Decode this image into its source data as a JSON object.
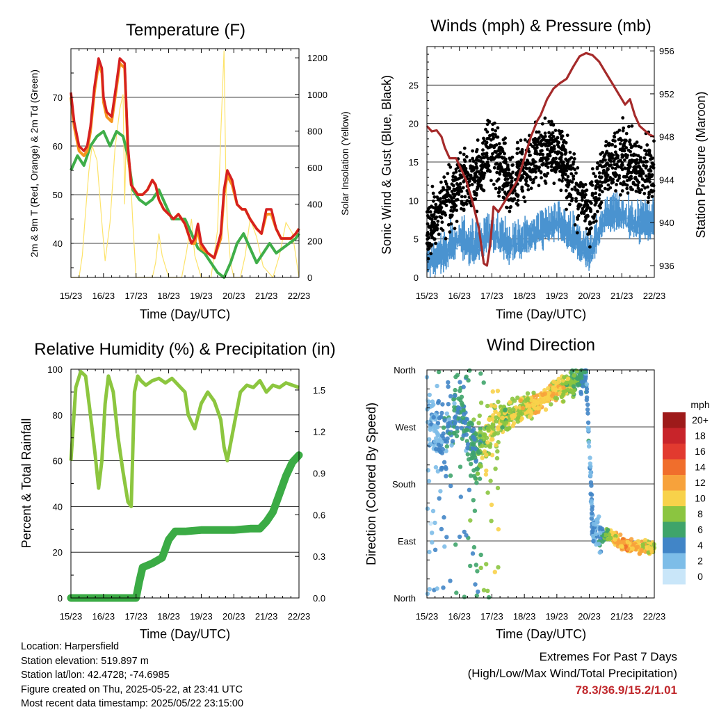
{
  "chart_data": [
    {
      "type": "line",
      "title": "Temperature (F)",
      "xlabel": "Time (Day/UTC)",
      "ylabel": "2m & 9m T (Red, Orange) & 2m Td (Green)",
      "y2label": "Solar Insolation (Yellow)",
      "x_ticks": [
        "15/23",
        "16/23",
        "17/23",
        "18/23",
        "19/23",
        "20/23",
        "21/23",
        "22/23"
      ],
      "ylim": [
        33,
        80
      ],
      "y_ticks": [
        40,
        50,
        60,
        70
      ],
      "y2lim": [
        0,
        1250
      ],
      "y2_ticks": [
        0,
        200,
        400,
        600,
        800,
        1000,
        1200
      ],
      "grid": true,
      "colors": {
        "t2m": "#d62020",
        "t9m": "#f7941d",
        "td": "#3fae49",
        "solar": "#fde36a"
      },
      "series": [
        {
          "name": "2m T",
          "x": [
            0,
            0.1,
            0.25,
            0.4,
            0.5,
            0.6,
            0.72,
            0.85,
            0.95,
            1.0,
            1.1,
            1.25,
            1.4,
            1.5,
            1.65,
            1.75,
            1.85,
            1.95,
            2.05,
            2.2,
            2.35,
            2.5,
            2.6,
            2.7,
            2.85,
            3.0,
            3.15,
            3.3,
            3.5,
            3.7,
            3.8,
            3.9,
            4.0,
            4.2,
            4.4,
            4.6,
            4.7,
            4.8,
            4.95,
            5.1,
            5.25,
            5.35,
            5.5,
            5.7,
            5.85,
            6.0,
            6.15,
            6.3,
            6.45,
            6.6,
            6.75,
            6.9,
            7.0
          ],
          "values": [
            71,
            65,
            60,
            59,
            60,
            64,
            72,
            78,
            76,
            70,
            67,
            66,
            73,
            78,
            77,
            60,
            52,
            51,
            50,
            50,
            51,
            53,
            52,
            49,
            47,
            46,
            45,
            46,
            44,
            40,
            41,
            44,
            40,
            38,
            37,
            42,
            51,
            55,
            53,
            48,
            47,
            47,
            45,
            43,
            42,
            47,
            47,
            43,
            41,
            41,
            41,
            42,
            43
          ]
        },
        {
          "name": "9m T",
          "x": [
            0,
            0.1,
            0.25,
            0.4,
            0.5,
            0.6,
            0.72,
            0.85,
            0.95,
            1.0,
            1.1,
            1.25,
            1.4,
            1.5,
            1.65,
            1.75,
            1.85,
            1.95,
            2.05,
            2.2,
            2.35,
            2.5,
            2.6,
            2.7,
            2.85,
            3.0,
            3.15,
            3.3,
            3.5,
            3.7,
            3.8,
            3.9,
            4.0,
            4.2,
            4.4,
            4.6,
            4.7,
            4.8,
            4.95,
            5.1,
            5.25,
            5.35,
            5.5,
            5.7,
            5.85,
            6.0,
            6.15,
            6.3,
            6.45,
            6.6,
            6.75,
            6.9,
            7.0
          ],
          "values": [
            70,
            64,
            59,
            58,
            59,
            63,
            71,
            77,
            75,
            69,
            66,
            65,
            72,
            77,
            76,
            59,
            52,
            51,
            50,
            50,
            51,
            53,
            52,
            49,
            47,
            46,
            45,
            46,
            44,
            40,
            40,
            43,
            39,
            38,
            37,
            41,
            50,
            54,
            52,
            48,
            47,
            47,
            45,
            43,
            42,
            46,
            46,
            43,
            41,
            41,
            41,
            42,
            43
          ]
        },
        {
          "name": "2m Td",
          "x": [
            0,
            0.2,
            0.4,
            0.6,
            0.8,
            1.0,
            1.2,
            1.4,
            1.6,
            1.75,
            1.9,
            2.1,
            2.3,
            2.5,
            2.7,
            2.9,
            3.1,
            3.3,
            3.5,
            3.7,
            3.9,
            4.1,
            4.3,
            4.5,
            4.7,
            4.9,
            5.1,
            5.3,
            5.5,
            5.7,
            5.9,
            6.1,
            6.3,
            6.5,
            6.7,
            6.9,
            7.0
          ],
          "values": [
            55,
            58,
            56,
            60,
            62,
            63,
            60,
            63,
            62,
            58,
            51,
            49,
            48,
            49,
            51,
            48,
            45,
            45,
            45,
            42,
            39,
            38,
            36,
            34,
            33,
            36,
            40,
            42,
            39,
            36,
            38,
            40,
            38,
            39,
            40,
            41,
            42
          ]
        },
        {
          "name": "Solar Insolation",
          "axis": "y2",
          "x": [
            0,
            0.25,
            0.35,
            0.45,
            0.55,
            0.65,
            0.8,
            0.95,
            1.05,
            1.2,
            1.35,
            1.5,
            1.6,
            1.65,
            1.7,
            1.8,
            1.9,
            2.0,
            2.5,
            2.6,
            2.7,
            2.8,
            3.0,
            3.4,
            3.55,
            3.7,
            3.8,
            4.0,
            4.3,
            4.5,
            4.6,
            4.7,
            4.75,
            4.8,
            4.9,
            5.0,
            5.2,
            5.35,
            5.5,
            5.7,
            5.9,
            6.2,
            6.4,
            6.6,
            6.8,
            7.0
          ],
          "values": [
            0,
            0,
            120,
            360,
            580,
            720,
            640,
            300,
            90,
            300,
            700,
            920,
            1000,
            400,
            820,
            660,
            300,
            0,
            0,
            80,
            240,
            120,
            0,
            0,
            140,
            320,
            120,
            0,
            0,
            260,
            780,
            1240,
            600,
            300,
            80,
            0,
            0,
            120,
            320,
            220,
            60,
            0,
            120,
            300,
            240,
            0
          ]
        }
      ]
    },
    {
      "type": "scatter",
      "title": "Winds (mph) & Pressure (mb)",
      "xlabel": "Time (Day/UTC)",
      "ylabel": "Sonic Wind & Gust (Blue, Black)",
      "y2label": "Station Pressure (Maroon)",
      "x_ticks": [
        "15/23",
        "16/23",
        "17/23",
        "18/23",
        "19/23",
        "20/23",
        "21/23",
        "22/23"
      ],
      "ylim": [
        0,
        30
      ],
      "y_ticks": [
        0,
        5,
        10,
        15,
        20,
        25
      ],
      "y2lim": [
        934.9,
        956.4
      ],
      "y2_ticks": [
        936,
        940,
        944,
        948,
        952,
        956
      ],
      "grid": true,
      "colors": {
        "wind": "#4a93d0",
        "gust": "#000000",
        "pressure": "#a52a2a"
      },
      "wind_profile": {
        "x": [
          0,
          0.5,
          1,
          1.5,
          2,
          2.5,
          3,
          3.5,
          4,
          4.5,
          5,
          5.5,
          6,
          6.5,
          7
        ],
        "wind": [
          3,
          4,
          6,
          5,
          7,
          5,
          6,
          7,
          8,
          6,
          4,
          9,
          9,
          8,
          8
        ],
        "gust": [
          6,
          9,
          12,
          13,
          17,
          12,
          14,
          16,
          17,
          12,
          8,
          15,
          16,
          14,
          14
        ]
      },
      "series": [
        {
          "name": "Station Pressure",
          "axis": "y2",
          "x": [
            0,
            0.15,
            0.3,
            0.45,
            0.55,
            0.7,
            0.9,
            1.05,
            1.2,
            1.4,
            1.6,
            1.75,
            1.85,
            1.95,
            2.05,
            2.2,
            2.4,
            2.6,
            2.8,
            3.0,
            3.2,
            3.4,
            3.5,
            3.7,
            3.9,
            4.1,
            4.3,
            4.5,
            4.7,
            4.9,
            5.1,
            5.3,
            5.5,
            5.7,
            5.9,
            6.1,
            6.25,
            6.4,
            6.55,
            6.7,
            6.85,
            7.0
          ],
          "values": [
            949,
            948.5,
            948.6,
            948,
            947,
            946,
            946,
            945,
            944,
            942,
            939.5,
            936.2,
            936,
            938,
            941.5,
            941,
            942,
            943,
            944,
            946,
            948,
            949.5,
            950,
            951.5,
            952.5,
            953,
            953.4,
            954.5,
            955.5,
            955.8,
            955.6,
            955,
            954,
            953,
            952,
            951,
            951.5,
            950,
            949,
            948.6,
            948.2,
            948
          ]
        }
      ]
    },
    {
      "type": "line",
      "title": "Relative Humidity (%) & Precipitation (in)",
      "xlabel": "Time (Day/UTC)",
      "ylabel": "Percent & Total Rainfall",
      "x_ticks": [
        "15/23",
        "16/23",
        "17/23",
        "18/23",
        "19/23",
        "20/23",
        "21/23",
        "22/23"
      ],
      "ylim": [
        0,
        100
      ],
      "y_ticks": [
        0,
        20,
        40,
        60,
        80,
        100
      ],
      "y2lim": [
        0,
        1.65
      ],
      "y2_ticks": [
        "0.0",
        "0.3",
        "0.6",
        "0.9",
        "1.2",
        "1.5"
      ],
      "grid": true,
      "colors": {
        "rh": "#8cc63f",
        "precip": "#3bab45"
      },
      "series": [
        {
          "name": "Relative Humidity",
          "x": [
            0,
            0.15,
            0.3,
            0.45,
            0.6,
            0.75,
            0.85,
            0.95,
            1.05,
            1.15,
            1.3,
            1.45,
            1.6,
            1.75,
            1.85,
            1.95,
            2.05,
            2.15,
            2.3,
            2.5,
            2.7,
            2.9,
            3.1,
            3.3,
            3.5,
            3.6,
            3.8,
            4.0,
            4.2,
            4.4,
            4.6,
            4.7,
            4.8,
            5.0,
            5.2,
            5.4,
            5.6,
            5.8,
            6.0,
            6.2,
            6.4,
            6.6,
            6.8,
            7.0
          ],
          "values": [
            60,
            92,
            99,
            97,
            80,
            62,
            48,
            60,
            85,
            97,
            90,
            70,
            55,
            42,
            40,
            90,
            97,
            95,
            93,
            95,
            96,
            94,
            96,
            93,
            90,
            80,
            74,
            85,
            90,
            86,
            78,
            66,
            60,
            75,
            90,
            93,
            92,
            95,
            90,
            93,
            92,
            94,
            93,
            92
          ]
        },
        {
          "name": "Total Rainfall",
          "axis": "y2",
          "x": [
            0,
            1.0,
            2.0,
            2.1,
            2.2,
            2.5,
            2.8,
            3.0,
            3.2,
            3.5,
            4.0,
            4.5,
            5.0,
            5.5,
            5.8,
            6.0,
            6.2,
            6.4,
            6.6,
            6.8,
            7.0
          ],
          "values": [
            0,
            0,
            0,
            0.12,
            0.22,
            0.25,
            0.29,
            0.42,
            0.48,
            0.48,
            0.49,
            0.49,
            0.49,
            0.5,
            0.5,
            0.55,
            0.62,
            0.75,
            0.88,
            0.98,
            1.03
          ]
        }
      ]
    },
    {
      "type": "scatter",
      "title": "Wind Direction",
      "xlabel": "Time (Day/UTC)",
      "ylabel": "Direction (Colored By Speed)",
      "x_ticks": [
        "15/23",
        "16/23",
        "17/23",
        "18/23",
        "19/23",
        "20/23",
        "21/23",
        "22/23"
      ],
      "y_ticks": [
        "North",
        "West",
        "South",
        "East",
        "North"
      ],
      "ylim": [
        0,
        360
      ],
      "grid": true,
      "direction_profile": {
        "x": [
          0,
          0.5,
          1,
          1.5,
          2,
          2.5,
          3,
          3.5,
          4,
          4.5,
          4.9,
          5.1,
          5.3,
          5.6,
          6,
          6.5,
          7
        ],
        "dir": [
          300,
          240,
          300,
          220,
          270,
          290,
          300,
          310,
          330,
          340,
          350,
          110,
          100,
          100,
          85,
          80,
          80
        ],
        "speed": [
          2,
          4,
          5,
          6,
          9,
          8,
          9,
          11,
          10,
          8,
          4,
          3,
          3,
          9,
          12,
          11,
          9
        ]
      },
      "legend": {
        "title": "mph",
        "labels": [
          "20+",
          "18",
          "16",
          "14",
          "12",
          "10",
          "8",
          "6",
          "4",
          "2",
          "0"
        ],
        "colors": [
          "#9e1a1a",
          "#c8242a",
          "#e23a2f",
          "#f06e2c",
          "#f7a23b",
          "#f8d24a",
          "#8bc540",
          "#3fa46a",
          "#4185c7",
          "#7dbde8",
          "#c9e6f9"
        ]
      }
    }
  ],
  "station_info": {
    "location": "Location: Harpersfield",
    "elevation": "Station elevation: 519.897 m",
    "latlon": "Station lat/lon: 42.4728; -74.6985",
    "created": "Figure created on Thu, 2025-05-22, at 23:41 UTC",
    "recent": "Most recent data timestamp: 2025/05/22 23:15:00"
  },
  "extremes": {
    "title": "Extremes For Past 7 Days",
    "subtitle": "(High/Low/Max Wind/Total Precipitation)",
    "values": "78.3/36.9/15.2/1.01"
  }
}
